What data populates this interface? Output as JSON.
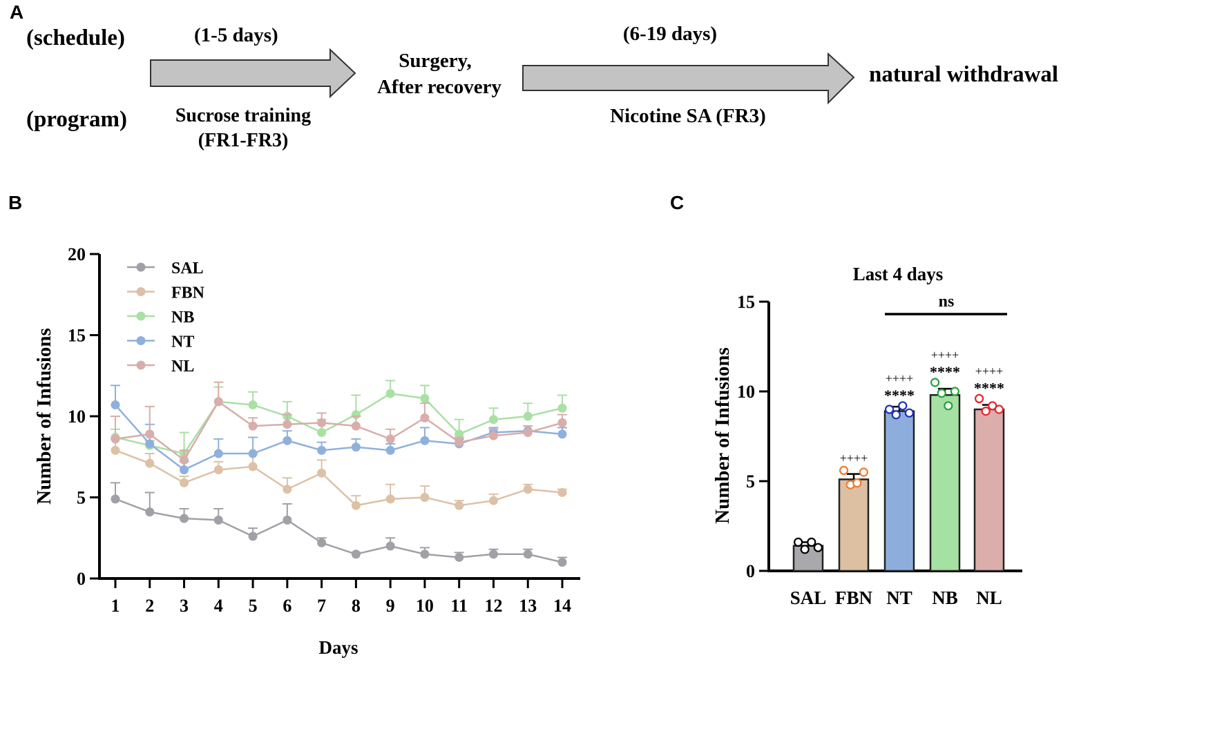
{
  "panels": {
    "a": "A",
    "b": "B",
    "c": "C"
  },
  "timeline": {
    "schedule_label": "(schedule)",
    "program_label": "(program)",
    "phase1_days": "(1-5 days)",
    "phase1_program_line1": "Sucrose training",
    "phase1_program_line2": "(FR1-FR3)",
    "surgery_line1": "Surgery,",
    "surgery_line2": "After recovery",
    "phase2_days": "(6-19 days)",
    "phase2_program": "Nicotine SA (FR3)",
    "end_label": "natural withdrawal"
  },
  "colors": {
    "SAL": "#a0a0a6",
    "FBN": "#dcc1a6",
    "NB": "#a9e0a4",
    "NT": "#8fb0dc",
    "NL": "#d8adaa",
    "bar_fill": {
      "SAL": "#a9a9ad",
      "FBN": "#ddbfa2",
      "NT": "#8daedc",
      "NB": "#a5e1a3",
      "NL": "#dbaeac"
    },
    "dots": {
      "SAL": "#000000",
      "FBN": "#f07a2c",
      "NT": "#1c2fbb",
      "NB": "#25a13a",
      "NL": "#e6252a"
    }
  },
  "chart_data": [
    {
      "type": "line",
      "panel": "B",
      "title": "",
      "xlabel": "Days",
      "ylabel": "Number of Infusions",
      "x": [
        1,
        2,
        3,
        4,
        5,
        6,
        7,
        8,
        9,
        10,
        11,
        12,
        13,
        14
      ],
      "xlim": [
        1,
        14
      ],
      "ylim": [
        0,
        20
      ],
      "yticks": [
        0,
        5,
        10,
        15,
        20
      ],
      "legend_position": "top-left",
      "series": [
        {
          "name": "SAL",
          "values": [
            4.9,
            4.1,
            3.7,
            3.6,
            2.6,
            3.6,
            2.2,
            1.5,
            2.0,
            1.5,
            1.3,
            1.5,
            1.5,
            1.0
          ],
          "err": [
            1.0,
            1.2,
            0.6,
            0.7,
            0.5,
            1.0,
            0.3,
            0.1,
            0.5,
            0.4,
            0.3,
            0.3,
            0.3,
            0.3
          ]
        },
        {
          "name": "FBN",
          "values": [
            7.9,
            7.1,
            5.9,
            6.7,
            6.9,
            5.5,
            6.5,
            4.5,
            4.9,
            5.0,
            4.5,
            4.8,
            5.5,
            5.3
          ],
          "err": [
            0.7,
            0.6,
            0.4,
            0.5,
            0.8,
            0.7,
            0.8,
            0.6,
            0.9,
            0.7,
            0.3,
            0.4,
            0.3,
            0.2
          ]
        },
        {
          "name": "NB",
          "values": [
            8.7,
            8.2,
            7.7,
            10.9,
            10.7,
            10.0,
            9.0,
            10.1,
            11.4,
            11.1,
            8.9,
            9.8,
            10.0,
            10.5
          ],
          "err": [
            0.5,
            0.3,
            1.3,
            0.9,
            0.8,
            0.9,
            0.8,
            1.2,
            0.8,
            0.8,
            0.9,
            0.7,
            0.8,
            0.8
          ]
        },
        {
          "name": "NT",
          "values": [
            10.7,
            8.3,
            6.7,
            7.7,
            7.7,
            8.5,
            7.9,
            8.1,
            7.9,
            8.5,
            8.3,
            9.0,
            9.1,
            8.9
          ],
          "err": [
            1.2,
            1.2,
            0.5,
            0.9,
            1.0,
            0.6,
            0.5,
            0.5,
            0.4,
            0.8,
            0.3,
            0.3,
            0.3,
            0.4
          ]
        },
        {
          "name": "NL",
          "values": [
            8.6,
            8.9,
            7.3,
            10.9,
            9.4,
            9.5,
            9.6,
            9.4,
            8.6,
            9.9,
            8.4,
            8.8,
            9.0,
            9.6
          ],
          "err": [
            1.4,
            1.7,
            0.6,
            1.2,
            0.5,
            0.6,
            0.6,
            0.6,
            0.6,
            0.9,
            0.3,
            0.4,
            0.4,
            0.5
          ]
        }
      ]
    },
    {
      "type": "bar",
      "panel": "C",
      "title": "Last 4 days",
      "xlabel": "",
      "ylabel": "Number of Infusions",
      "ylim": [
        0,
        15
      ],
      "yticks": [
        0,
        5,
        10,
        15
      ],
      "categories": [
        "SAL",
        "FBN",
        "NT",
        "NB",
        "NL"
      ],
      "values": [
        1.4,
        5.1,
        8.9,
        9.8,
        9.0
      ],
      "err": [
        0.2,
        0.3,
        0.25,
        0.35,
        0.25
      ],
      "points": [
        [
          1.6,
          1.2,
          1.6,
          1.3
        ],
        [
          5.6,
          4.8,
          4.9,
          5.5
        ],
        [
          9.0,
          8.7,
          9.2,
          8.8
        ],
        [
          10.5,
          9.9,
          9.2,
          10.0
        ],
        [
          9.6,
          8.9,
          9.2,
          9.0
        ]
      ],
      "sig_star": [
        "",
        "",
        "****",
        "****",
        "****"
      ],
      "sig_plus": [
        "",
        "++++",
        "++++",
        "++++",
        "++++"
      ],
      "bracket_label": "ns"
    }
  ]
}
